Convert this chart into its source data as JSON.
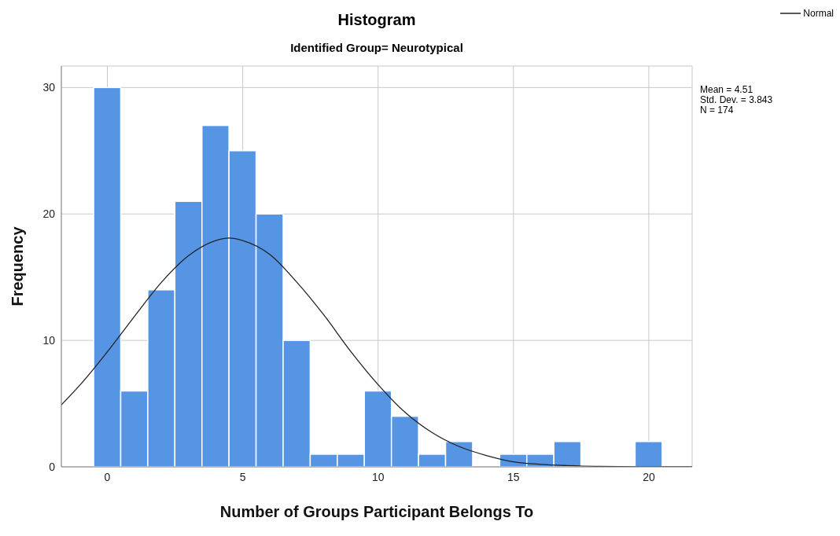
{
  "chart_data": {
    "type": "histogram",
    "title": "Histogram",
    "subtitle": "Identified Group= Neurotypical",
    "xlabel": "Number of Groups Participant Belongs To",
    "ylabel": "Frequency",
    "bins": [
      -0.5,
      0.5,
      1.5,
      2.5,
      3.5,
      4.5,
      5.5,
      6.5,
      7.5,
      8.5,
      9.5,
      10.5,
      11.5,
      12.5,
      13.5,
      14.5,
      15.5,
      16.5,
      17.5,
      18.5,
      19.5,
      20.5
    ],
    "series": [
      {
        "type": "histogram",
        "color": "#5595e3",
        "values": [
          30,
          6,
          14,
          21,
          27,
          25,
          20,
          10,
          1,
          1,
          6,
          4,
          1,
          2,
          0,
          1,
          1,
          2,
          0,
          0,
          2
        ]
      },
      {
        "type": "line",
        "name": "Normal",
        "color": "#222222",
        "x": [
          -1.7,
          -1,
          0,
          1,
          2,
          3,
          4,
          4.51,
          5,
          6,
          7,
          8,
          9,
          10,
          11,
          12,
          13,
          14,
          15,
          16,
          17,
          18,
          20,
          21.6
        ],
        "values": [
          4.9,
          6.5,
          9.1,
          11.9,
          14.6,
          16.7,
          17.9,
          18.1,
          17.9,
          16.8,
          14.6,
          12.0,
          9.1,
          6.5,
          4.3,
          2.7,
          1.6,
          0.9,
          0.4,
          0.2,
          0.1,
          0.04,
          0.01,
          0
        ]
      }
    ],
    "xlim": [
      -1.7,
      21.6
    ],
    "ylim": [
      0,
      31.7
    ],
    "xticks": [
      0,
      5,
      10,
      15,
      20
    ],
    "yticks": [
      0,
      10,
      20,
      30
    ],
    "grid": true,
    "legend": "top right",
    "marker": "none",
    "annotations": [
      "Mean = 4.51",
      "Std. Dev. = 3.843",
      "N = 174"
    ]
  }
}
